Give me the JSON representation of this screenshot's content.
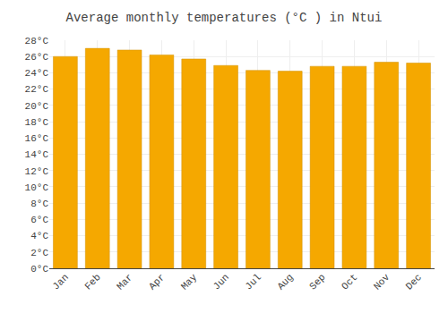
{
  "chart_data": {
    "type": "bar",
    "title": "Average monthly temperatures (°C ) in Ntui",
    "categories": [
      "Jan",
      "Feb",
      "Mar",
      "Apr",
      "May",
      "Jun",
      "Jul",
      "Aug",
      "Sep",
      "Oct",
      "Nov",
      "Dec"
    ],
    "values": [
      26.0,
      27.0,
      26.8,
      26.2,
      25.7,
      24.9,
      24.3,
      24.2,
      24.8,
      24.8,
      25.3,
      25.2
    ],
    "color": "#F5A800",
    "ylim": [
      0,
      28
    ],
    "yticks": [
      {
        "value": 0,
        "label": "0°C"
      },
      {
        "value": 2,
        "label": "2°C"
      },
      {
        "value": 4,
        "label": "4°C"
      },
      {
        "value": 6,
        "label": "6°C"
      },
      {
        "value": 8,
        "label": "8°C"
      },
      {
        "value": 10,
        "label": "10°C"
      },
      {
        "value": 12,
        "label": "12°C"
      },
      {
        "value": 14,
        "label": "14°C"
      },
      {
        "value": 16,
        "label": "16°C"
      },
      {
        "value": 18,
        "label": "18°C"
      },
      {
        "value": 20,
        "label": "20°C"
      },
      {
        "value": 22,
        "label": "22°C"
      },
      {
        "value": 24,
        "label": "24°C"
      },
      {
        "value": 26,
        "label": "26°C"
      },
      {
        "value": 28,
        "label": "28°C"
      }
    ],
    "grid": true
  }
}
